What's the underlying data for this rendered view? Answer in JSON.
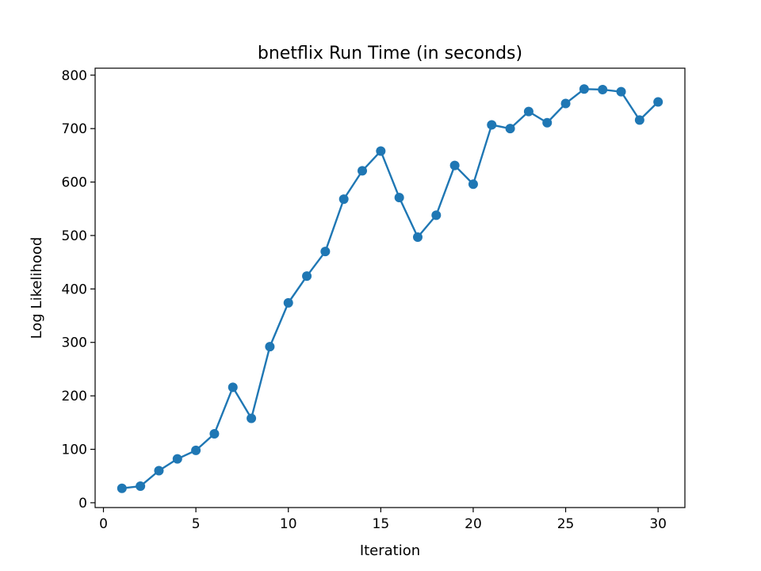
{
  "chart_data": {
    "type": "line",
    "title": "bnetflix Run Time (in seconds)",
    "xlabel": "Iteration",
    "ylabel": "Log Likelihood",
    "xlim": [
      -0.45,
      31.45
    ],
    "ylim": [
      -9,
      813
    ],
    "xticks": [
      0,
      5,
      10,
      15,
      20,
      25,
      30
    ],
    "yticks": [
      0,
      100,
      200,
      300,
      400,
      500,
      600,
      700,
      800
    ],
    "grid": false,
    "series": [
      {
        "color": "#1f77b4",
        "marker": "circle",
        "x": [
          1,
          2,
          3,
          4,
          5,
          6,
          7,
          8,
          9,
          10,
          11,
          12,
          13,
          14,
          15,
          16,
          17,
          18,
          19,
          20,
          21,
          22,
          23,
          24,
          25,
          26,
          27,
          28,
          29,
          30
        ],
        "y": [
          27,
          31,
          60,
          82,
          98,
          129,
          216,
          158,
          292,
          374,
          424,
          470,
          568,
          621,
          658,
          571,
          497,
          538,
          631,
          596,
          707,
          700,
          732,
          711,
          747,
          774,
          773,
          769,
          716,
          750
        ]
      }
    ]
  }
}
